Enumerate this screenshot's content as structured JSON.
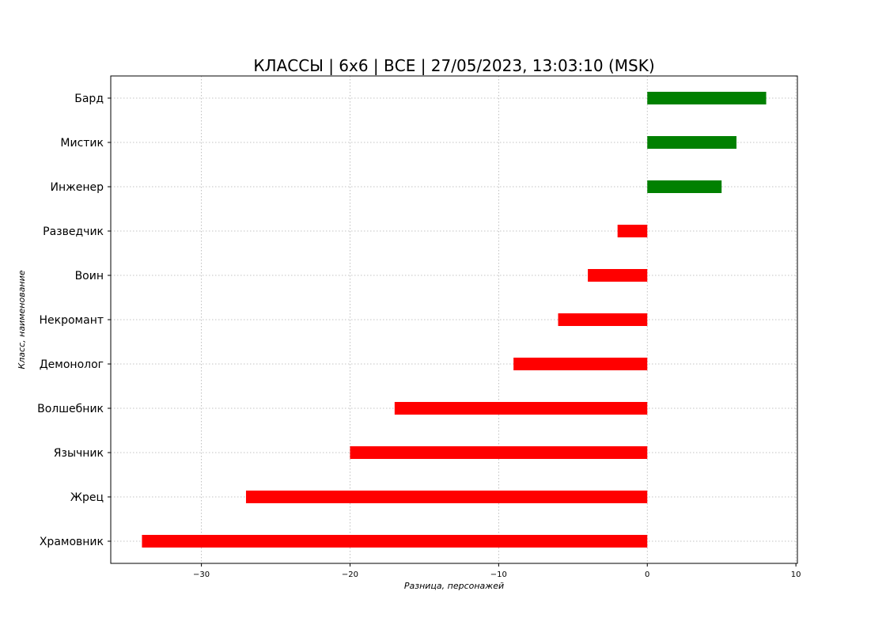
{
  "chart_data": {
    "type": "bar",
    "orientation": "horizontal",
    "title": "КЛАССЫ | 6x6 | ВСЕ | 27/05/2023, 13:03:10 (MSK)",
    "xlabel": "Разница, персонажей",
    "ylabel": "Класс, наименование",
    "categories": [
      "Бард",
      "Мистик",
      "Инженер",
      "Разведчик",
      "Воин",
      "Некромант",
      "Демонолог",
      "Волшебник",
      "Язычник",
      "Жрец",
      "Храмовник"
    ],
    "values": [
      8,
      6,
      5,
      -2,
      -4,
      -6,
      -9,
      -17,
      -20,
      -27,
      -34
    ],
    "xlim": [
      -36.1,
      10.1
    ],
    "xticks": [
      -30,
      -20,
      -10,
      0,
      10
    ],
    "xtick_labels": [
      "−30",
      "−20",
      "−10",
      "0",
      "10"
    ],
    "grid": true,
    "colors": {
      "positive": "#008000",
      "negative": "#ff0000"
    }
  }
}
